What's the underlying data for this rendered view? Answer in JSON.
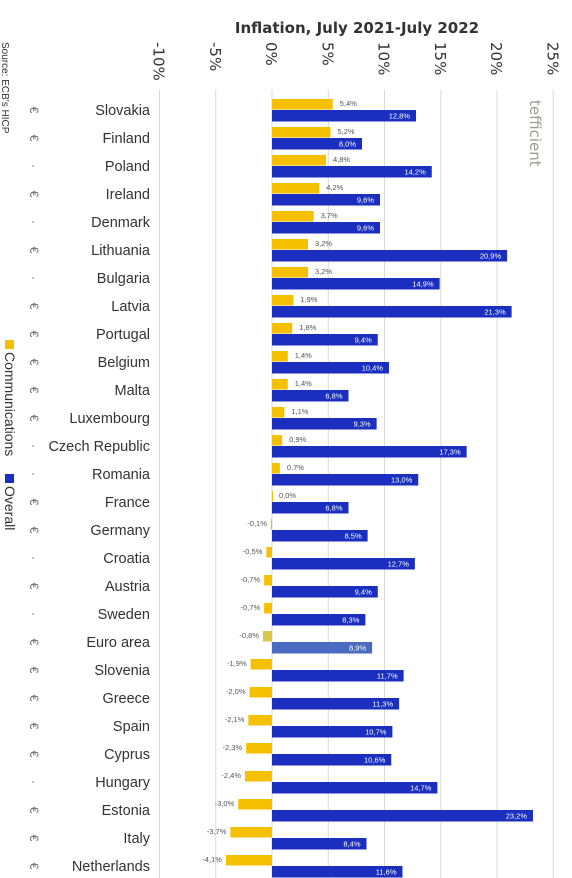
{
  "chart_data": {
    "type": "bar",
    "title": "Inflation, July 2021-July 2022",
    "x_tick_labels": [
      "-10%",
      "-5%",
      "0%",
      "5%",
      "10%",
      "15%",
      "20%",
      "25%"
    ],
    "xlim": [
      -10,
      25
    ],
    "grid": true,
    "categories": [
      "Slovakia",
      "Finland",
      "Poland",
      "Ireland",
      "Denmark",
      "Lithuania",
      "Bulgaria",
      "Latvia",
      "Portugal",
      "Belgium",
      "Malta",
      "Luxembourg",
      "Czech Republic",
      "Romania",
      "France",
      "Germany",
      "Croatia",
      "Austria",
      "Sweden",
      "Euro area",
      "Slovenia",
      "Greece",
      "Spain",
      "Cyprus",
      "Hungary",
      "Estonia",
      "Italy",
      "Netherlands"
    ],
    "currency_markers": [
      "€",
      "€",
      "·",
      "€",
      "·",
      "€",
      "·",
      "€",
      "€",
      "€",
      "€",
      "€",
      "·",
      "·",
      "€",
      "€",
      "·",
      "€",
      "·",
      "€",
      "€",
      "€",
      "€",
      "€",
      "·",
      "€",
      "€",
      "€"
    ],
    "series": [
      {
        "name": "Communications",
        "color": "#f5c000",
        "values": [
          5.4,
          5.2,
          4.8,
          4.2,
          3.7,
          3.2,
          3.2,
          1.9,
          1.8,
          1.4,
          1.4,
          1.1,
          0.9,
          0.7,
          0.0,
          -0.1,
          -0.5,
          -0.7,
          -0.7,
          -0.8,
          -1.9,
          -2.0,
          -2.1,
          -2.3,
          -2.4,
          -3.0,
          -3.7,
          -4.1
        ],
        "labels": [
          "5,4%",
          "5,2%",
          "4,8%",
          "4,2%",
          "3,7%",
          "3,2%",
          "3,2%",
          "1,9%",
          "1,8%",
          "1,4%",
          "1,4%",
          "1,1%",
          "0,9%",
          "0,7%",
          "0,0%",
          "-0,1%",
          "-0,5%",
          "-0,7%",
          "-0,7%",
          "-0,8%",
          "-1,9%",
          "-2,0%",
          "-2,1%",
          "-2,3%",
          "-2,4%",
          "-3,0%",
          "-3,7%",
          "-4,1%"
        ]
      },
      {
        "name": "Overall",
        "color": "#1a2fbf",
        "values": [
          12.8,
          8.0,
          14.2,
          9.6,
          9.6,
          20.9,
          14.9,
          21.3,
          9.4,
          10.4,
          6.8,
          9.3,
          17.3,
          13.0,
          6.8,
          8.5,
          12.7,
          9.4,
          8.3,
          8.9,
          11.7,
          11.3,
          10.7,
          10.6,
          14.7,
          23.2,
          8.4,
          11.6
        ],
        "labels": [
          "12,8%",
          "8,0%",
          "14,2%",
          "9,6%",
          "9,6%",
          "20,9%",
          "14,9%",
          "21,3%",
          "9,4%",
          "10,4%",
          "6,8%",
          "9,3%",
          "17,3%",
          "13,0%",
          "6,8%",
          "8,5%",
          "12,7%",
          "9,4%",
          "8,3%",
          "8,9%",
          "11,7%",
          "11,3%",
          "10,7%",
          "10,6%",
          "14,7%",
          "23,2%",
          "8,4%",
          "11,6%"
        ]
      }
    ],
    "highlight_category": "Euro area",
    "highlight_colors": {
      "communications": "#d9c64a",
      "overall": "#4a6bbf"
    },
    "legend": {
      "position": "left, rotated",
      "entries": [
        "Communications",
        "Overall"
      ]
    },
    "source": "Source: ECB's HICP",
    "watermark": "tefficient"
  }
}
